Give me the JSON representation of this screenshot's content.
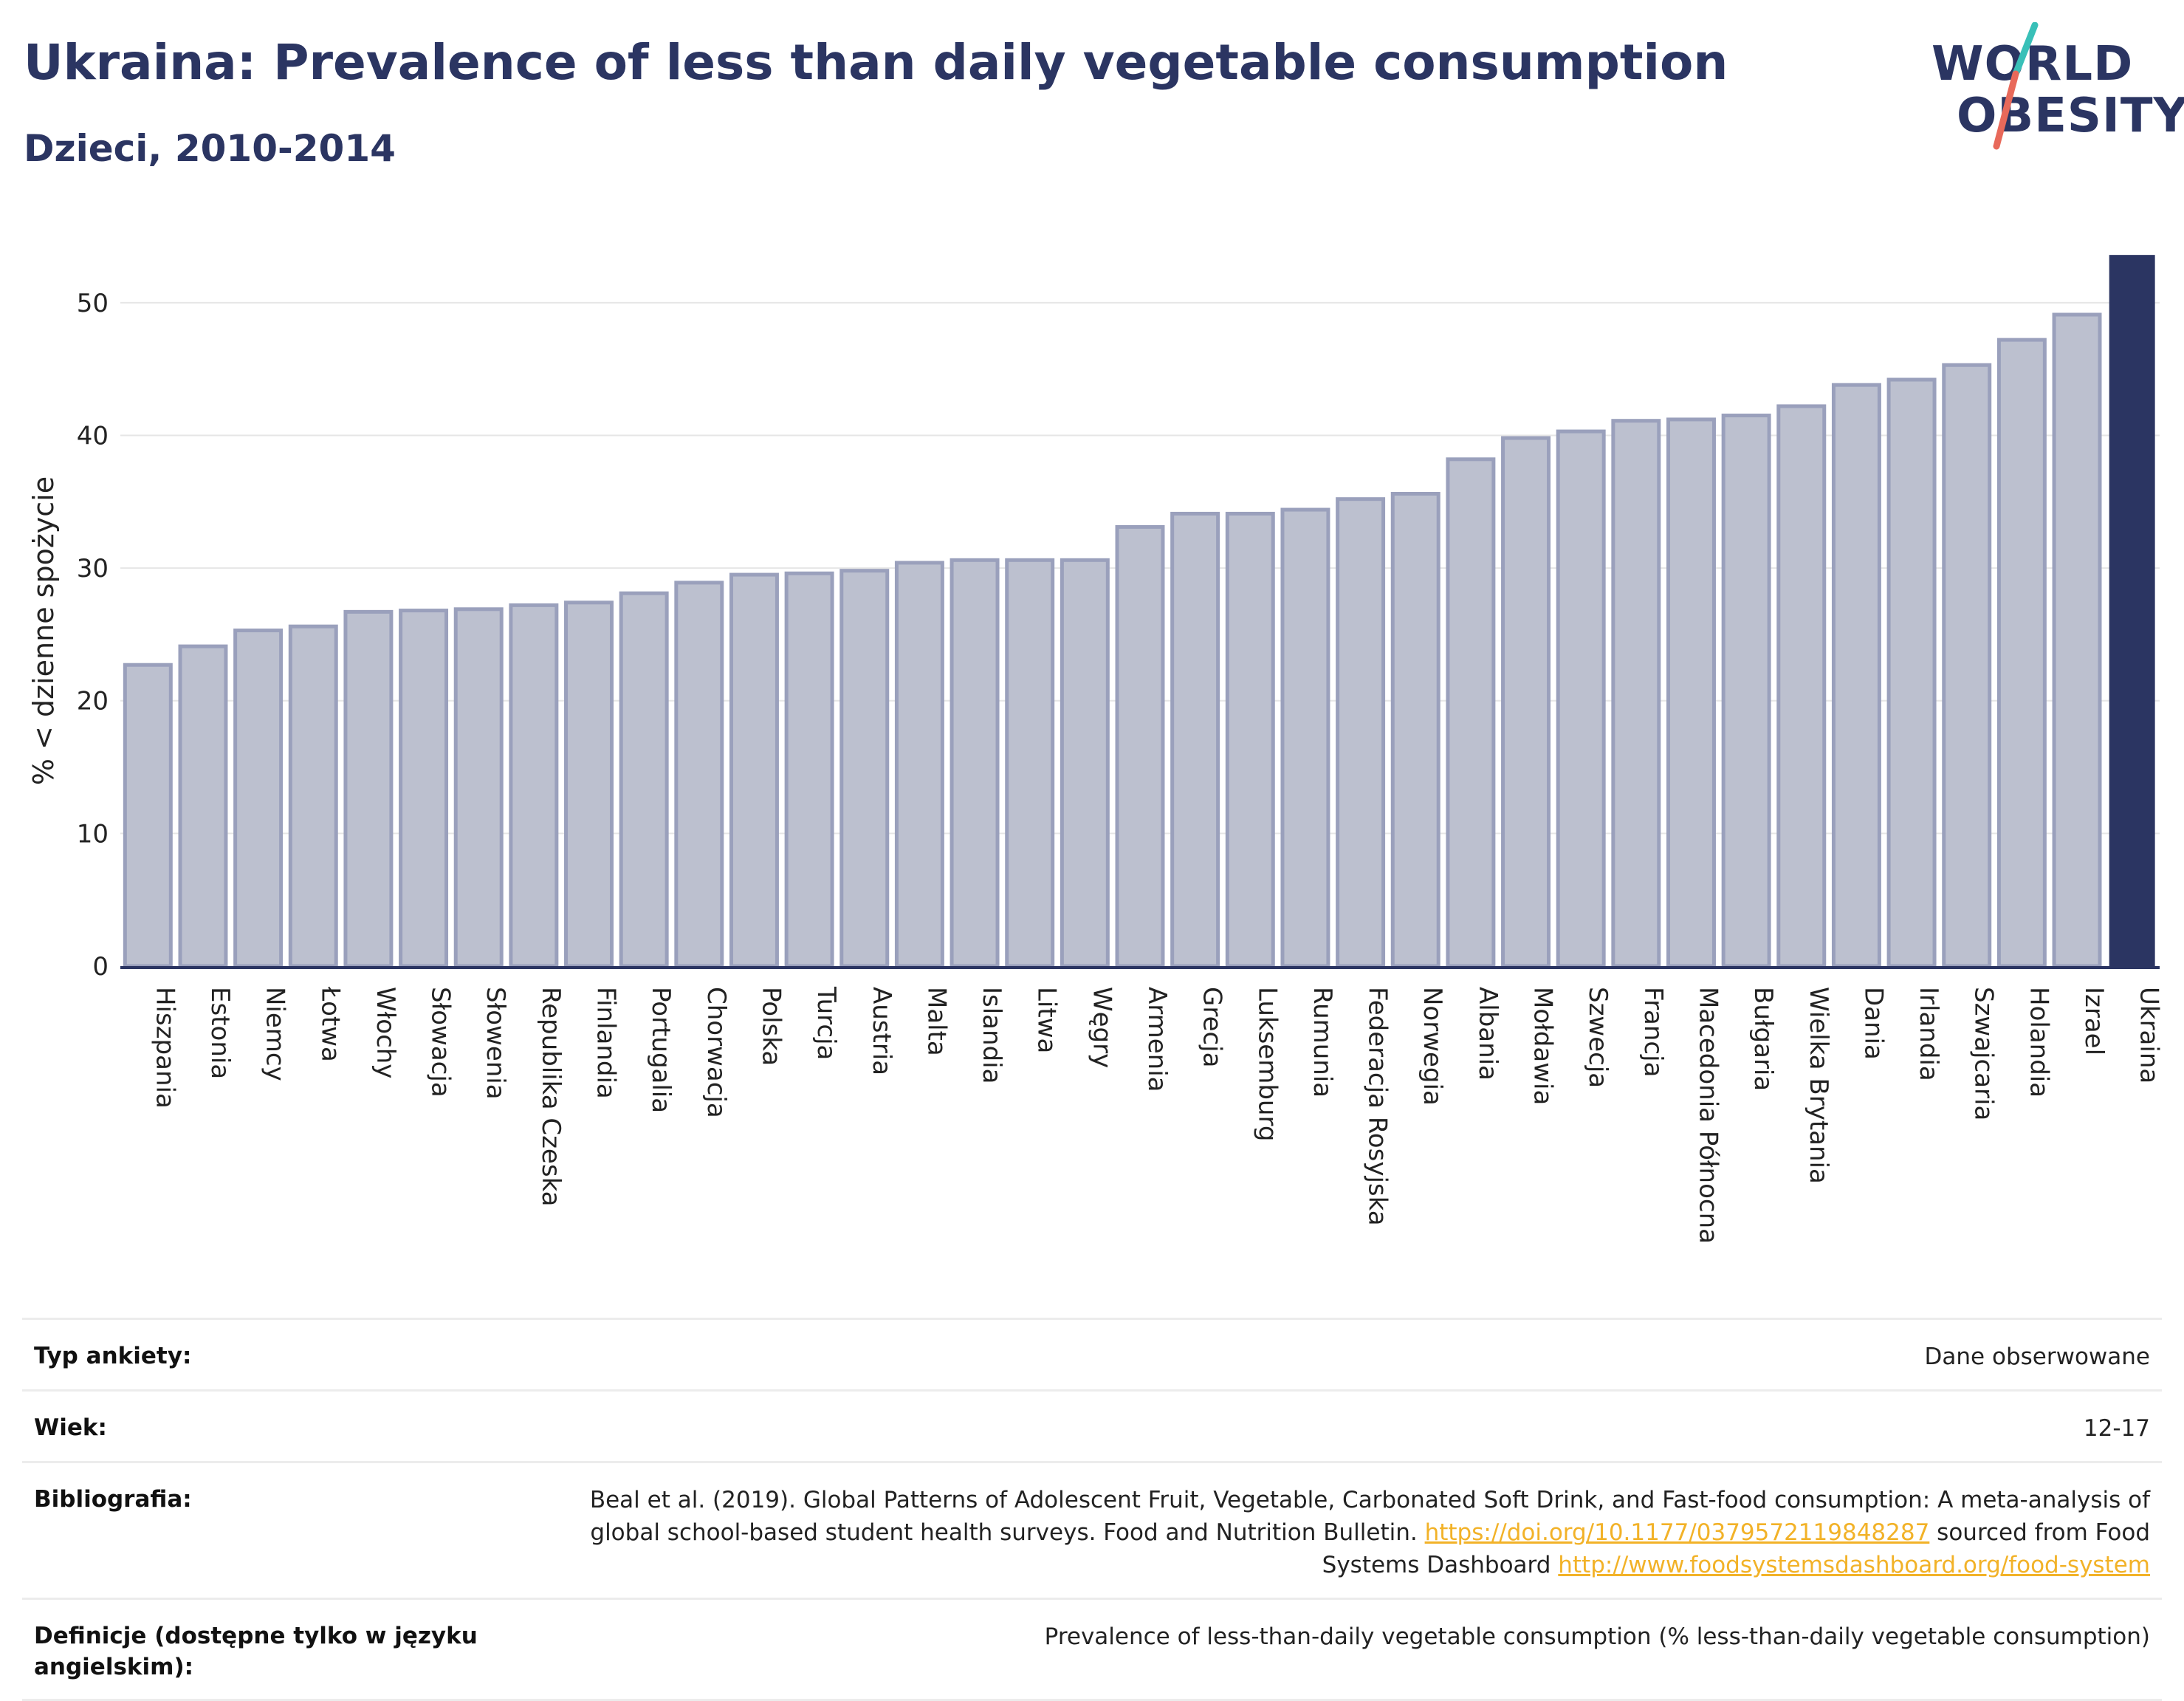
{
  "header": {
    "title": "Ukraina: Prevalence of less than daily vegetable consumption",
    "subtitle": "Dzieci, 2010-2014"
  },
  "logo": {
    "line1": "WORLD",
    "line2": "OBESITY",
    "colors": {
      "text": "#2b3562",
      "slash_top": "#39c0b8",
      "slash_bottom": "#e8695a"
    }
  },
  "colors": {
    "bar_fill": "#bcc0cf",
    "bar_stroke": "#9aa0bc",
    "highlight": "#2b3562",
    "grid": "#e6e6e6"
  },
  "chart_data": {
    "type": "bar",
    "title": "",
    "xlabel": "",
    "ylabel": "% < dzienne spożycie",
    "ylim": [
      0,
      55
    ],
    "yticks": [
      0,
      10,
      20,
      30,
      40,
      50
    ],
    "grid": true,
    "highlight": "Ukraina",
    "categories": [
      "Hiszpania",
      "Estonia",
      "Niemcy",
      "Łotwa",
      "Włochy",
      "Słowacja",
      "Słowenia",
      "Republika Czeska",
      "Finlandia",
      "Portugalia",
      "Chorwacja",
      "Polska",
      "Turcja",
      "Austria",
      "Malta",
      "Islandia",
      "Litwa",
      "Węgry",
      "Armenia",
      "Grecja",
      "Luksemburg",
      "Rumunia",
      "Federacja Rosyjska",
      "Norwegia",
      "Albania",
      "Mołdawia",
      "Szwecja",
      "Francja",
      "Macedonia Północna",
      "Bułgaria",
      "Wielka Brytania",
      "Dania",
      "Irlandia",
      "Szwajcaria",
      "Holandia",
      "Izrael",
      "Ukraina"
    ],
    "values": [
      22.7,
      24.1,
      25.3,
      25.6,
      26.7,
      26.8,
      26.9,
      27.2,
      27.4,
      28.1,
      28.9,
      29.5,
      29.6,
      29.8,
      30.4,
      30.6,
      30.6,
      30.6,
      33.1,
      34.1,
      34.1,
      34.4,
      35.2,
      35.6,
      38.2,
      39.8,
      40.3,
      41.1,
      41.2,
      41.5,
      42.2,
      43.8,
      44.2,
      45.3,
      47.2,
      49.1,
      53.6
    ]
  },
  "info": [
    {
      "key": "Typ ankiety:",
      "value": "Dane obserwowane"
    },
    {
      "key": "Wiek:",
      "value": "12-17"
    },
    {
      "key": "Bibliografia:",
      "text1": "Beal et al. (2019). Global Patterns of Adolescent Fruit, Vegetable, Carbonated Soft Drink, and Fast-food consumption: A meta-analysis of global school-based student health surveys. Food and Nutrition Bulletin. ",
      "link1": "https://doi.org/10.1177/0379572119848287",
      "text2": " sourced from Food Systems Dashboard ",
      "link2": "http://www.foodsystemsdashboard.org/food-system"
    },
    {
      "key": "Definicje (dostępne tylko w języku angielskim):",
      "value": "Prevalence of less-than-daily vegetable consumption (% less-than-daily vegetable consumption)"
    }
  ]
}
